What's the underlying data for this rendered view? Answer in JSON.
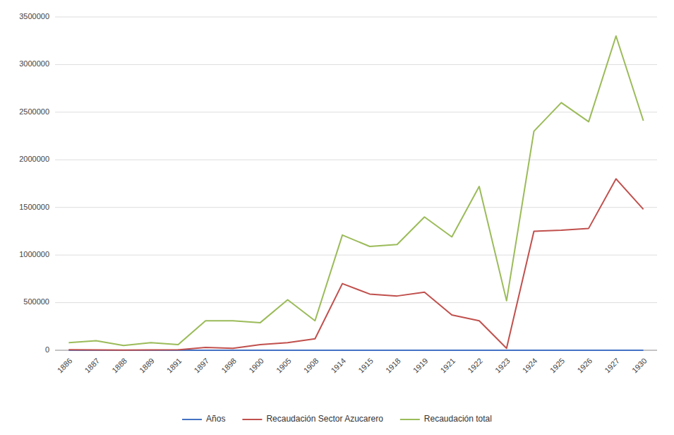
{
  "chart_data": {
    "type": "line",
    "categories": [
      "1886",
      "1887",
      "1888",
      "1889",
      "1891",
      "1897",
      "1898",
      "1900",
      "1905",
      "1908",
      "1914",
      "1915",
      "1918",
      "1919",
      "1921",
      "1922",
      "1923",
      "1924",
      "1925",
      "1926",
      "1927",
      "1930"
    ],
    "series": [
      {
        "name": "Años",
        "color": "#4472C4",
        "values": [
          0,
          0,
          0,
          0,
          0,
          0,
          0,
          0,
          0,
          0,
          0,
          0,
          0,
          0,
          0,
          0,
          0,
          0,
          0,
          0,
          0,
          0
        ]
      },
      {
        "name": "Recaudación Sector Azucarero",
        "color": "#C0504D",
        "values": [
          5000,
          3000,
          2000,
          3000,
          5000,
          30000,
          20000,
          60000,
          80000,
          120000,
          700000,
          590000,
          570000,
          610000,
          370000,
          310000,
          20000,
          1250000,
          1260000,
          1280000,
          1800000,
          1480000
        ]
      },
      {
        "name": "Recaudación total",
        "color": "#9BBB59",
        "values": [
          80000,
          100000,
          50000,
          80000,
          60000,
          310000,
          310000,
          290000,
          530000,
          310000,
          1210000,
          1090000,
          1110000,
          1400000,
          1190000,
          1720000,
          520000,
          2300000,
          2600000,
          2400000,
          3300000,
          2410000
        ]
      }
    ],
    "ylim": [
      0,
      3500000
    ],
    "yticks": [
      0,
      500000,
      1000000,
      1500000,
      2000000,
      2500000,
      3000000,
      3500000
    ],
    "grid": true,
    "legend": "bottom"
  }
}
